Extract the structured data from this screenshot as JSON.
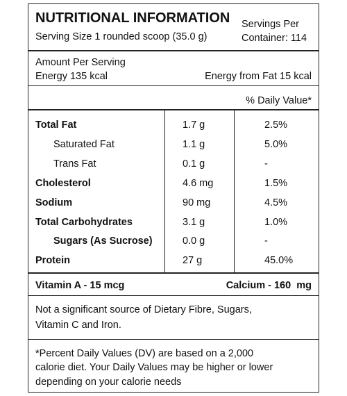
{
  "header": {
    "title": "NUTRITIONAL INFORMATION",
    "serving_size": "Serving Size 1 rounded scoop (35.0 g)",
    "servings_per_container": [
      "Servings Per",
      "Container: 114"
    ]
  },
  "energy": {
    "heading": "Amount Per Serving",
    "energy": "Energy 135 kcal",
    "energy_from_fat": "Energy from Fat 15 kcal"
  },
  "daily_value_heading": "% Daily Value*",
  "table": {
    "rows": [
      [
        "Total Fat",
        "1.7 g",
        "2.5%"
      ],
      [
        "Saturated Fat",
        "1.1 g",
        "5.0%"
      ],
      [
        "Trans Fat",
        "0.1 g",
        "-"
      ],
      [
        "Cholesterol",
        "4.6 mg",
        "1.5%"
      ],
      [
        "Sodium",
        "90 mg",
        "4.5%"
      ],
      [
        "Total Carbohydrates",
        "3.1 g",
        "1.0%"
      ],
      [
        "Sugars (As Sucrose)",
        "0.0 g",
        "-"
      ],
      [
        "Protein",
        "27 g",
        "45.0%"
      ]
    ]
  },
  "vitamins": {
    "left": "Vitamin A - 15 mcg",
    "right": "Calcium - 160  mg"
  },
  "note": [
    "Not a significant source of Dietary Fibre, Sugars,",
    "Vitamin C and Iron."
  ],
  "footnote": [
    "*Percent Daily Values (DV) are based on a 2,000",
    "calorie diet. Your Daily Values may be higher or lower",
    "depending on your calorie needs"
  ]
}
